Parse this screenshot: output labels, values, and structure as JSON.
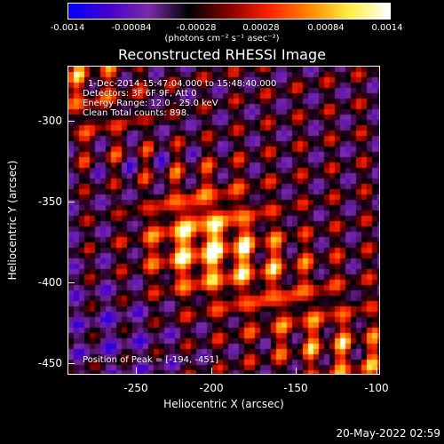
{
  "colorbar": {
    "ticks": [
      "-0.0014",
      "-0.00084",
      "-0.00028",
      "0.00028",
      "0.00084",
      "0.0014"
    ],
    "unit_text": "(photons cm⁻² s⁻¹ asec⁻²)",
    "colors": [
      "#0000ff",
      "#4400cc",
      "#7a2aa8",
      "#000000",
      "#880000",
      "#ff2200",
      "#ff8800",
      "#ffee44",
      "#ffffff"
    ]
  },
  "title": "Reconstructed RHESSI Image",
  "info": {
    "line1": "1-Dec-2014 15:47:04.000 to 15:48:40.000",
    "line2": "Detectors: 3F 6F 9F, Att 0",
    "line3": "Energy Range: 12.0 - 25.0 keV",
    "line4": "Clean     Total counts: 898."
  },
  "peak_text": "Position of Peak = [-194, -451]",
  "axes": {
    "xlabel": "Heliocentric X (arcsec)",
    "ylabel": "Heliocentric Y (arcsec)",
    "xticks": [
      "-250",
      "-200",
      "-150",
      "-100"
    ],
    "yticks": [
      "-300",
      "-350",
      "-400",
      "-450"
    ],
    "xlim": [
      -290,
      -100
    ],
    "ylim": [
      -458,
      -270
    ]
  },
  "timestamp": "20-May-2022 02:59"
}
